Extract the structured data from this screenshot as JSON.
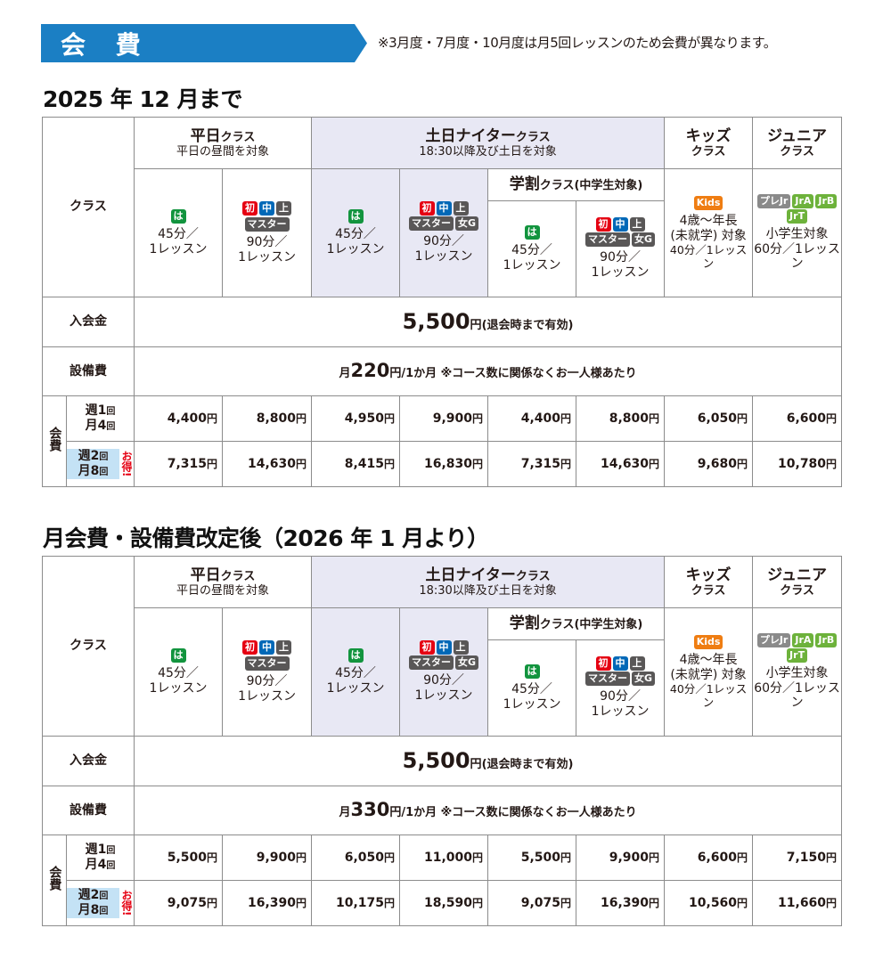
{
  "banner": {
    "title": "会 費"
  },
  "notice": "※3月度・7月度・10月度は月5回レッスンのため会費が異なります。",
  "tables": [
    {
      "title": "2025 年 12 月まで",
      "header": {
        "class_label": "クラス",
        "heijitsu": {
          "name": "平日",
          "suffix": "クラス",
          "sub": "平日の昼間を対象"
        },
        "donichi": {
          "name": "土日ナイター",
          "suffix": "クラス",
          "sub": "18:30以降及び土日を対象"
        },
        "kids": {
          "name": "キッズ",
          "sub": "クラス"
        },
        "junior": {
          "name": "ジュニア",
          "sub": "クラス"
        },
        "gakuwari": {
          "name": "学割",
          "suffix": "クラス(中学生対象)"
        }
      },
      "columns": [
        {
          "badges": [
            "は"
          ],
          "dur1": "45分／",
          "dur2": "1レッスン"
        },
        {
          "badges": [
            "初",
            "中",
            "上",
            "マスター"
          ],
          "dur1": "90分／",
          "dur2": "1レッスン"
        },
        {
          "badges": [
            "は"
          ],
          "dur1": "45分／",
          "dur2": "1レッスン"
        },
        {
          "badges": [
            "初",
            "中",
            "上",
            "マスター",
            "女G"
          ],
          "dur1": "90分／",
          "dur2": "1レッスン"
        },
        {
          "badges": [
            "は"
          ],
          "dur1": "45分／",
          "dur2": "1レッスン"
        },
        {
          "badges": [
            "初",
            "中",
            "上",
            "マスター",
            "女G"
          ],
          "dur1": "90分／",
          "dur2": "1レッスン"
        },
        {
          "badges": [
            "Kids"
          ],
          "dur1": "4歳〜年長",
          "dur2": "(未就学) 対象",
          "dur3": "40分／1レッスン"
        },
        {
          "badges": [
            "プレJr",
            "JrA",
            "JrB",
            "JrT"
          ],
          "dur1": "小学生対象",
          "dur2": "60分／1レッスン"
        }
      ],
      "entry_fee": {
        "label": "入会金",
        "amount": "5,500",
        "yen": "円",
        "note": "(退会時まで有効)"
      },
      "facility_fee": {
        "label": "設備費",
        "prefix": "月",
        "amount": "220",
        "suffix": "円/1か月",
        "note": "※コース数に関係なくお一人様あたり"
      },
      "monthly": {
        "label": "会費",
        "row1": {
          "line1": "週1",
          "line2": "月4",
          "kai": "回",
          "prices": [
            "4,400",
            "8,800",
            "4,950",
            "9,900",
            "4,400",
            "8,800",
            "6,050",
            "6,600"
          ]
        },
        "row2": {
          "line1": "週2",
          "line2": "月8",
          "kai": "回",
          "otoku": "お得!",
          "prices": [
            "7,315",
            "14,630",
            "8,415",
            "16,830",
            "7,315",
            "14,630",
            "9,680",
            "10,780"
          ]
        },
        "yen": "円"
      }
    },
    {
      "title": "月会費・設備費改定後（2026 年 1 月より）",
      "header": {
        "class_label": "クラス",
        "heijitsu": {
          "name": "平日",
          "suffix": "クラス",
          "sub": "平日の昼間を対象"
        },
        "donichi": {
          "name": "土日ナイター",
          "suffix": "クラス",
          "sub": "18:30以降及び土日を対象"
        },
        "kids": {
          "name": "キッズ",
          "sub": "クラス"
        },
        "junior": {
          "name": "ジュニア",
          "sub": "クラス"
        },
        "gakuwari": {
          "name": "学割",
          "suffix": "クラス(中学生対象)"
        }
      },
      "columns": [
        {
          "badges": [
            "は"
          ],
          "dur1": "45分／",
          "dur2": "1レッスン"
        },
        {
          "badges": [
            "初",
            "中",
            "上",
            "マスター"
          ],
          "dur1": "90分／",
          "dur2": "1レッスン"
        },
        {
          "badges": [
            "は"
          ],
          "dur1": "45分／",
          "dur2": "1レッスン"
        },
        {
          "badges": [
            "初",
            "中",
            "上",
            "マスター",
            "女G"
          ],
          "dur1": "90分／",
          "dur2": "1レッスン"
        },
        {
          "badges": [
            "は"
          ],
          "dur1": "45分／",
          "dur2": "1レッスン"
        },
        {
          "badges": [
            "初",
            "中",
            "上",
            "マスター",
            "女G"
          ],
          "dur1": "90分／",
          "dur2": "1レッスン"
        },
        {
          "badges": [
            "Kids"
          ],
          "dur1": "4歳〜年長",
          "dur2": "(未就学) 対象",
          "dur3": "40分／1レッスン"
        },
        {
          "badges": [
            "プレJr",
            "JrA",
            "JrB",
            "JrT"
          ],
          "dur1": "小学生対象",
          "dur2": "60分／1レッスン"
        }
      ],
      "entry_fee": {
        "label": "入会金",
        "amount": "5,500",
        "yen": "円",
        "note": "(退会時まで有効)"
      },
      "facility_fee": {
        "label": "設備費",
        "prefix": "月",
        "amount": "330",
        "suffix": "円/1か月",
        "note": "※コース数に関係なくお一人様あたり"
      },
      "monthly": {
        "label": "会費",
        "row1": {
          "line1": "週1",
          "line2": "月4",
          "kai": "回",
          "prices": [
            "5,500",
            "9,900",
            "6,050",
            "11,000",
            "5,500",
            "9,900",
            "6,600",
            "7,150"
          ]
        },
        "row2": {
          "line1": "週2",
          "line2": "月8",
          "kai": "回",
          "otoku": "お得!",
          "prices": [
            "9,075",
            "16,390",
            "10,175",
            "18,590",
            "9,075",
            "16,390",
            "10,560",
            "11,660"
          ]
        },
        "yen": "円"
      }
    }
  ],
  "colors": {
    "banner": "#1b7fc4",
    "lavender": "#e8e8f4",
    "light_blue": "#c4e2f5",
    "badge_green": "#12943e",
    "badge_red": "#e50012",
    "badge_blue": "#0068b7",
    "badge_gray": "#595757",
    "badge_orange": "#ef7d12",
    "badge_lightgreen": "#6db23b"
  }
}
